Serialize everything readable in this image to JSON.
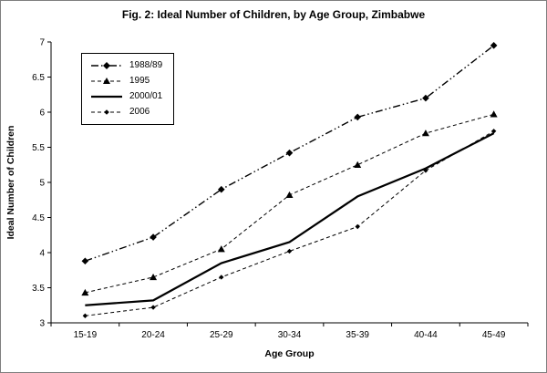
{
  "figure": {
    "title": "Fig. 2:  Ideal Number of Children, by Age Group, Zimbabwe"
  },
  "chart_data": {
    "type": "line",
    "title": "Fig. 2:  Ideal Number of Children, by Age Group, Zimbabwe",
    "xlabel": "Age Group",
    "ylabel": "Ideal Number of Children",
    "categories": [
      "15-19",
      "20-24",
      "25-29",
      "30-34",
      "35-39",
      "40-44",
      "45-49"
    ],
    "ylim": [
      3,
      7
    ],
    "ytick_step": 0.5,
    "grid": false,
    "legend_position": "top-left-inside",
    "axis_color": "#000000",
    "series": [
      {
        "name": "1988/89",
        "values": [
          3.88,
          4.22,
          4.9,
          5.42,
          5.93,
          6.2,
          6.95
        ],
        "line_style": "dash-dot-dot",
        "marker": "diamond",
        "color": "#000000"
      },
      {
        "name": "1995",
        "values": [
          3.43,
          3.65,
          4.05,
          4.82,
          5.25,
          5.7,
          5.97
        ],
        "line_style": "dashed",
        "marker": "triangle",
        "color": "#000000"
      },
      {
        "name": "2000/01",
        "values": [
          3.25,
          3.32,
          3.85,
          4.15,
          4.8,
          5.2,
          5.7
        ],
        "line_style": "solid",
        "marker": "none",
        "color": "#000000"
      },
      {
        "name": "2006",
        "values": [
          3.1,
          3.22,
          3.65,
          4.02,
          4.37,
          5.17,
          5.73
        ],
        "line_style": "dashed",
        "marker": "small-diamond",
        "color": "#000000"
      }
    ]
  }
}
